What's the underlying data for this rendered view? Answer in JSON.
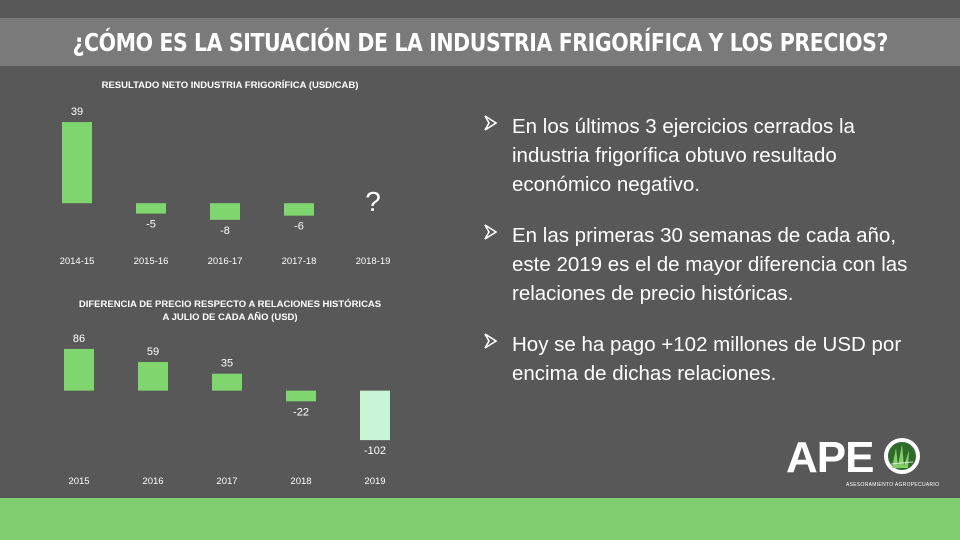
{
  "title": "¿CÓMO ES LA SITUACIÓN DE LA INDUSTRIA FRIGORÍFICA Y LOS PRECIOS?",
  "colors": {
    "background": "#585858",
    "title_bar": "#7a7a7a",
    "bar": "#7fd66f",
    "bar_highlight": "#c8f5d6",
    "footer": "#7fcf6f"
  },
  "chart_data": [
    {
      "type": "bar",
      "title": "RESULTADO NETO INDUSTRIA FRIGORÍFICA (USD/CAB)",
      "categories": [
        "2014-15",
        "2015-16",
        "2016-17",
        "2017-18",
        "2018-19"
      ],
      "values": [
        39,
        -5,
        -8,
        -6,
        null
      ],
      "value_labels": [
        "39",
        "-5",
        "-8",
        "-6",
        "?"
      ],
      "ylim": [
        -10,
        40
      ],
      "xlabel": "",
      "ylabel": ""
    },
    {
      "type": "bar",
      "title_lines": [
        "DIFERENCIA DE PRECIO RESPECTO A RELACIONES HISTÓRICAS",
        "A JULIO DE CADA AÑO (USD)"
      ],
      "categories": [
        "2015",
        "2016",
        "2017",
        "2018",
        "2019"
      ],
      "values": [
        86,
        59,
        35,
        -22,
        -102
      ],
      "value_labels": [
        "86",
        "59",
        "35",
        "-22",
        "-102"
      ],
      "highlight_index": 4,
      "ylim": [
        -110,
        90
      ],
      "xlabel": "",
      "ylabel": ""
    }
  ],
  "bullets": [
    {
      "lines": [
        "En los últimos 3 ejercicios cerrados la",
        "industria frigorífica obtuvo resultado",
        "económico negativo."
      ]
    },
    {
      "lines": [
        "En las primeras 30 semanas de cada año,",
        "este 2019 es el de mayor diferencia con las",
        "relaciones de precio históricas."
      ]
    },
    {
      "lines": [
        "Hoy se ha pago +102 millones de USD por",
        "encima de dichas relaciones."
      ]
    }
  ],
  "logo": {
    "text": "APE",
    "subtitle": "ASESORAMIENTO AGROPECUARIO",
    "icon": "grass-circle-icon"
  }
}
